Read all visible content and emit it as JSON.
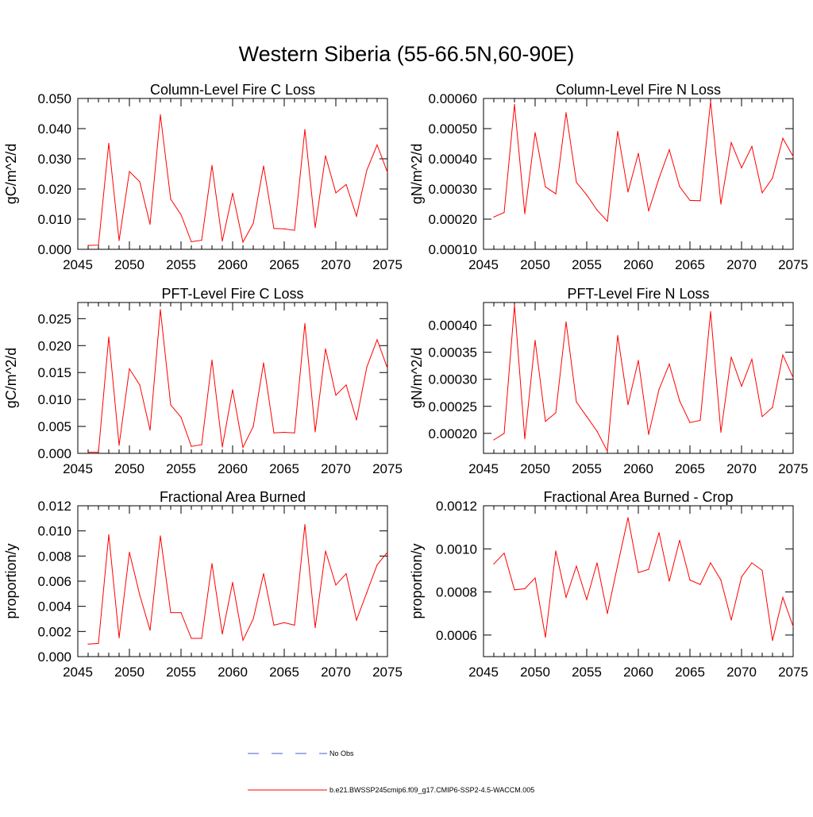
{
  "title": "Western Siberia (55-66.5N,60-90E)",
  "colors": {
    "series": "#ff0000",
    "obs": "#4a5cc8",
    "axis": "#000000"
  },
  "legend": {
    "obs_label": "No Obs",
    "model_label": "b.e21.BWSSP245cmip6.f09_g17.CMIP6-SSP2-4.5-WACCM.005"
  },
  "chart_data": [
    {
      "type": "line",
      "title": "Column-Level Fire C Loss",
      "ylabel": "gC/m^2/d",
      "xlim": [
        2045,
        2075
      ],
      "ylim": [
        0.0,
        0.05
      ],
      "xticks": [
        2045,
        2050,
        2055,
        2060,
        2065,
        2070,
        2075
      ],
      "yticks": [
        "0.000",
        "0.010",
        "0.020",
        "0.030",
        "0.040",
        "0.050"
      ],
      "x": [
        2046,
        2047,
        2048,
        2049,
        2050,
        2051,
        2052,
        2053,
        2054,
        2055,
        2056,
        2057,
        2058,
        2059,
        2060,
        2061,
        2062,
        2063,
        2064,
        2065,
        2066,
        2067,
        2068,
        2069,
        2070,
        2071,
        2072,
        2073,
        2074,
        2075
      ],
      "series": [
        {
          "values": [
            0.0013,
            0.0014,
            0.0351,
            0.0029,
            0.0258,
            0.0224,
            0.0083,
            0.0446,
            0.0166,
            0.0115,
            0.0025,
            0.003,
            0.0278,
            0.0027,
            0.0186,
            0.0024,
            0.0086,
            0.0276,
            0.0069,
            0.0068,
            0.0063,
            0.0397,
            0.0072,
            0.031,
            0.0187,
            0.0215,
            0.011,
            0.0262,
            0.0346,
            0.0255
          ]
        }
      ]
    },
    {
      "type": "line",
      "title": "Column-Level Fire N Loss",
      "ylabel": "gN/m^2/d",
      "xlim": [
        2045,
        2075
      ],
      "ylim": [
        0.0001,
        0.0006
      ],
      "xticks": [
        2045,
        2050,
        2055,
        2060,
        2065,
        2070,
        2075
      ],
      "yticks": [
        "0.00010",
        "0.00020",
        "0.00030",
        "0.00040",
        "0.00050",
        "0.00060"
      ],
      "x": [
        2046,
        2047,
        2048,
        2049,
        2050,
        2051,
        2052,
        2053,
        2054,
        2055,
        2056,
        2057,
        2058,
        2059,
        2060,
        2061,
        2062,
        2063,
        2064,
        2065,
        2066,
        2067,
        2068,
        2069,
        2070,
        2071,
        2072,
        2073,
        2074,
        2075
      ],
      "series": [
        {
          "values": [
            0.000207,
            0.000222,
            0.00058,
            0.000218,
            0.000487,
            0.000307,
            0.000284,
            0.000553,
            0.000322,
            0.00028,
            0.00023,
            0.000193,
            0.000491,
            0.00029,
            0.000418,
            0.000227,
            0.000335,
            0.00043,
            0.000308,
            0.000262,
            0.000261,
            0.00059,
            0.00025,
            0.000454,
            0.00037,
            0.000441,
            0.000287,
            0.000336,
            0.000468,
            0.000408
          ]
        }
      ]
    },
    {
      "type": "line",
      "title": "PFT-Level Fire C Loss",
      "ylabel": "gC/m^2/d",
      "xlim": [
        2045,
        2075
      ],
      "ylim": [
        0.0,
        0.028
      ],
      "xticks": [
        2045,
        2050,
        2055,
        2060,
        2065,
        2070,
        2075
      ],
      "yticks": [
        "0.000",
        "0.005",
        "0.010",
        "0.015",
        "0.020",
        "0.025"
      ],
      "x": [
        2046,
        2047,
        2048,
        2049,
        2050,
        2051,
        2052,
        2053,
        2054,
        2055,
        2056,
        2057,
        2058,
        2059,
        2060,
        2061,
        2062,
        2063,
        2064,
        2065,
        2066,
        2067,
        2068,
        2069,
        2070,
        2071,
        2072,
        2073,
        2074,
        2075
      ],
      "series": [
        {
          "values": [
            0.0002,
            0.0002,
            0.0216,
            0.0015,
            0.0157,
            0.0127,
            0.0043,
            0.0267,
            0.009,
            0.0067,
            0.0013,
            0.0016,
            0.0173,
            0.0012,
            0.0118,
            0.0011,
            0.005,
            0.0168,
            0.0038,
            0.0039,
            0.0038,
            0.0241,
            0.004,
            0.0194,
            0.0108,
            0.0127,
            0.0062,
            0.016,
            0.0211,
            0.0158
          ]
        }
      ]
    },
    {
      "type": "line",
      "title": "PFT-Level Fire N Loss",
      "ylabel": "gN/m^2/d",
      "xlim": [
        2045,
        2075
      ],
      "ylim": [
        0.000163,
        0.000442
      ],
      "xticks": [
        2045,
        2050,
        2055,
        2060,
        2065,
        2070,
        2075
      ],
      "yticks": [
        "0.00020",
        "0.00025",
        "0.00030",
        "0.00035",
        "0.00040"
      ],
      "x": [
        2046,
        2047,
        2048,
        2049,
        2050,
        2051,
        2052,
        2053,
        2054,
        2055,
        2056,
        2057,
        2058,
        2059,
        2060,
        2061,
        2062,
        2063,
        2064,
        2065,
        2066,
        2067,
        2068,
        2069,
        2070,
        2071,
        2072,
        2073,
        2074,
        2075
      ],
      "series": [
        {
          "values": [
            0.000188,
            0.0002,
            0.000437,
            0.00019,
            0.000372,
            0.000222,
            0.000238,
            0.000406,
            0.000258,
            0.000231,
            0.000204,
            0.000167,
            0.000381,
            0.000253,
            0.000335,
            0.000198,
            0.000281,
            0.000328,
            0.00026,
            0.00022,
            0.000224,
            0.000425,
            0.000202,
            0.000341,
            0.000287,
            0.000337,
            0.000231,
            0.000248,
            0.000345,
            0.000303
          ]
        }
      ]
    },
    {
      "type": "line",
      "title": "Fractional Area Burned",
      "ylabel": "proportion/y",
      "xlim": [
        2045,
        2075
      ],
      "ylim": [
        0.0,
        0.012
      ],
      "xticks": [
        2045,
        2050,
        2055,
        2060,
        2065,
        2070,
        2075
      ],
      "yticks": [
        "0.000",
        "0.002",
        "0.004",
        "0.006",
        "0.008",
        "0.010",
        "0.012"
      ],
      "x": [
        2046,
        2047,
        2048,
        2049,
        2050,
        2051,
        2052,
        2053,
        2054,
        2055,
        2056,
        2057,
        2058,
        2059,
        2060,
        2061,
        2062,
        2063,
        2064,
        2065,
        2066,
        2067,
        2068,
        2069,
        2070,
        2071,
        2072,
        2073,
        2074,
        2075
      ],
      "series": [
        {
          "values": [
            0.001,
            0.00105,
            0.0097,
            0.0015,
            0.0083,
            0.0049,
            0.0021,
            0.0096,
            0.0035,
            0.0035,
            0.00145,
            0.00145,
            0.0074,
            0.0018,
            0.0059,
            0.0013,
            0.003,
            0.0066,
            0.0025,
            0.0027,
            0.0025,
            0.0105,
            0.0023,
            0.0084,
            0.0057,
            0.0066,
            0.0029,
            0.0051,
            0.0073,
            0.0083
          ]
        }
      ]
    },
    {
      "type": "line",
      "title": "Fractional Area Burned - Crop",
      "ylabel": "proportion/y",
      "xlim": [
        2045,
        2075
      ],
      "ylim": [
        0.0005,
        0.0012
      ],
      "xticks": [
        2045,
        2050,
        2055,
        2060,
        2065,
        2070,
        2075
      ],
      "yticks": [
        "0.0006",
        "0.0008",
        "0.0010",
        "0.0012"
      ],
      "x": [
        2046,
        2047,
        2048,
        2049,
        2050,
        2051,
        2052,
        2053,
        2054,
        2055,
        2056,
        2057,
        2058,
        2059,
        2060,
        2061,
        2062,
        2063,
        2064,
        2065,
        2066,
        2067,
        2068,
        2069,
        2070,
        2071,
        2072,
        2073,
        2074,
        2075
      ],
      "series": [
        {
          "values": [
            0.00093,
            0.00098,
            0.00081,
            0.000815,
            0.000865,
            0.00059,
            0.00099,
            0.000775,
            0.00092,
            0.000765,
            0.000935,
            0.0007,
            0.000925,
            0.001145,
            0.00089,
            0.000905,
            0.001075,
            0.00085,
            0.00104,
            0.000855,
            0.000835,
            0.000935,
            0.000855,
            0.00067,
            0.00087,
            0.000935,
            0.0009,
            0.000575,
            0.000775,
            0.00064
          ]
        }
      ]
    }
  ]
}
